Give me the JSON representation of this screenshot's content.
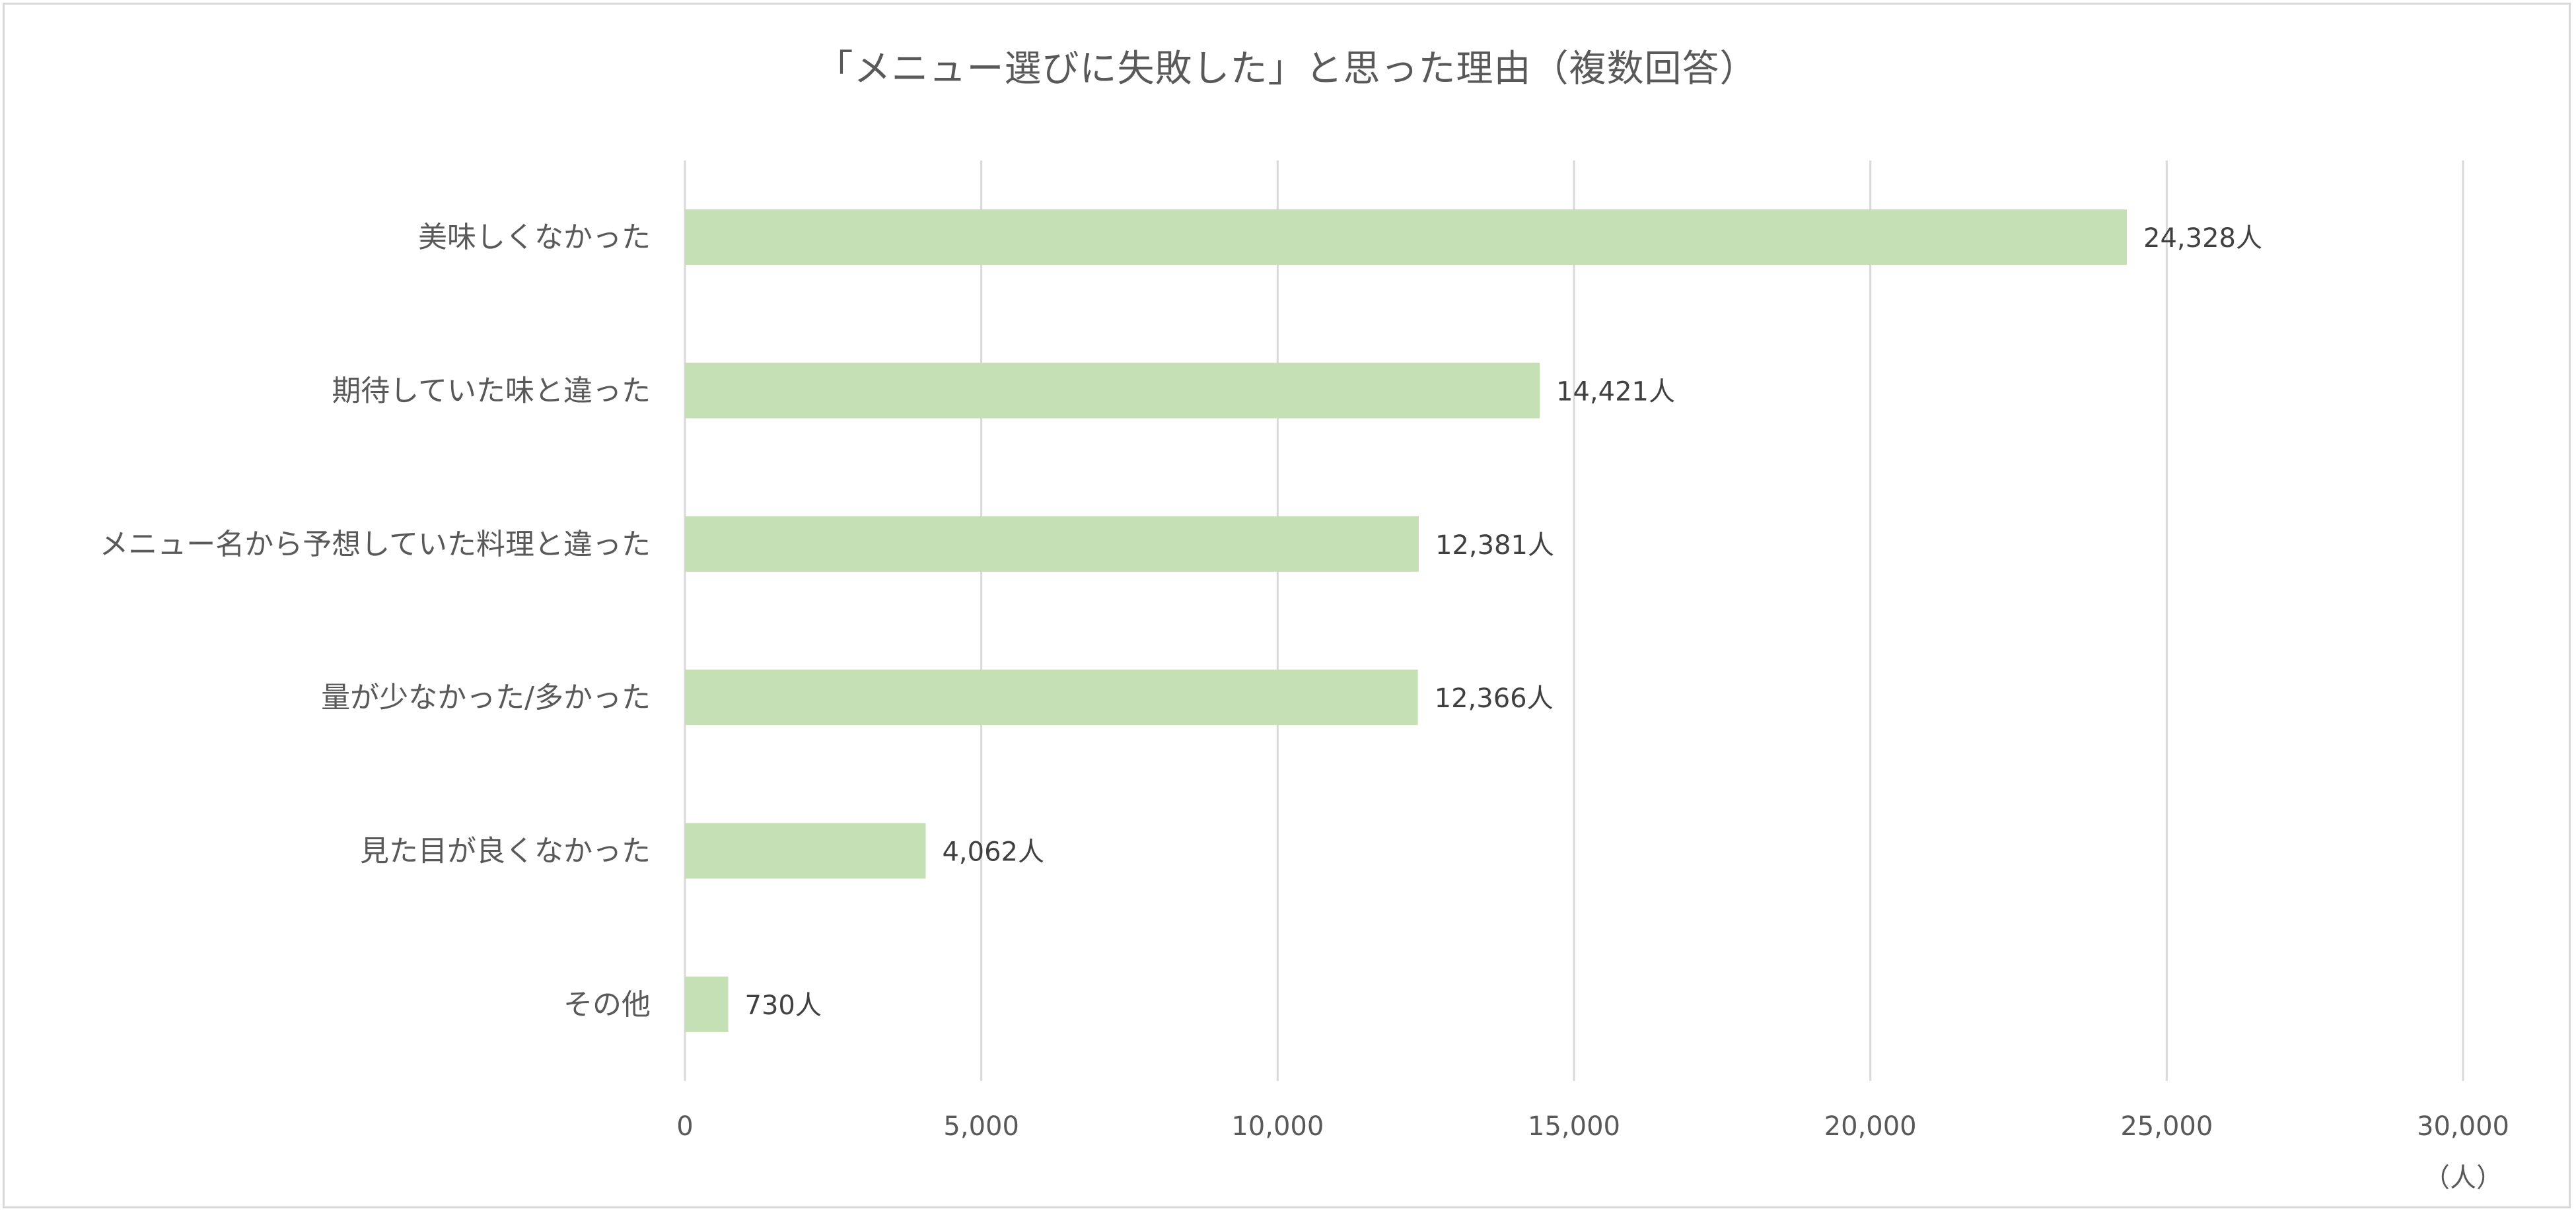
{
  "chart_data": {
    "type": "bar",
    "orientation": "horizontal",
    "title": "「メニュー選びに失敗した」と思った理由（複数回答）",
    "categories": [
      "美味しくなかった",
      "期待していた味と違った",
      "メニュー名から予想していた料理と違った",
      "量が少なかった/多かった",
      "見た目が良くなかった",
      "その他"
    ],
    "values": [
      24328,
      14421,
      12381,
      12366,
      4062,
      730
    ],
    "data_labels": [
      "24,328人",
      "14,421人",
      "12,381人",
      "12,366人",
      "4,062人",
      "730人"
    ],
    "xlim": [
      0,
      30000
    ],
    "x_ticks": [
      0,
      5000,
      10000,
      15000,
      20000,
      25000,
      30000
    ],
    "x_tick_labels": [
      "0",
      "5,000",
      "10,000",
      "15,000",
      "20,000",
      "25,000",
      "30,000"
    ],
    "xlabel": "（人）",
    "ylabel": "",
    "grid": "vertical",
    "legend": "none",
    "colors": {
      "bar": "#c5e0b4",
      "grid": "#d9d9d9",
      "text": "#595959",
      "border": "#d9d9d9"
    }
  }
}
